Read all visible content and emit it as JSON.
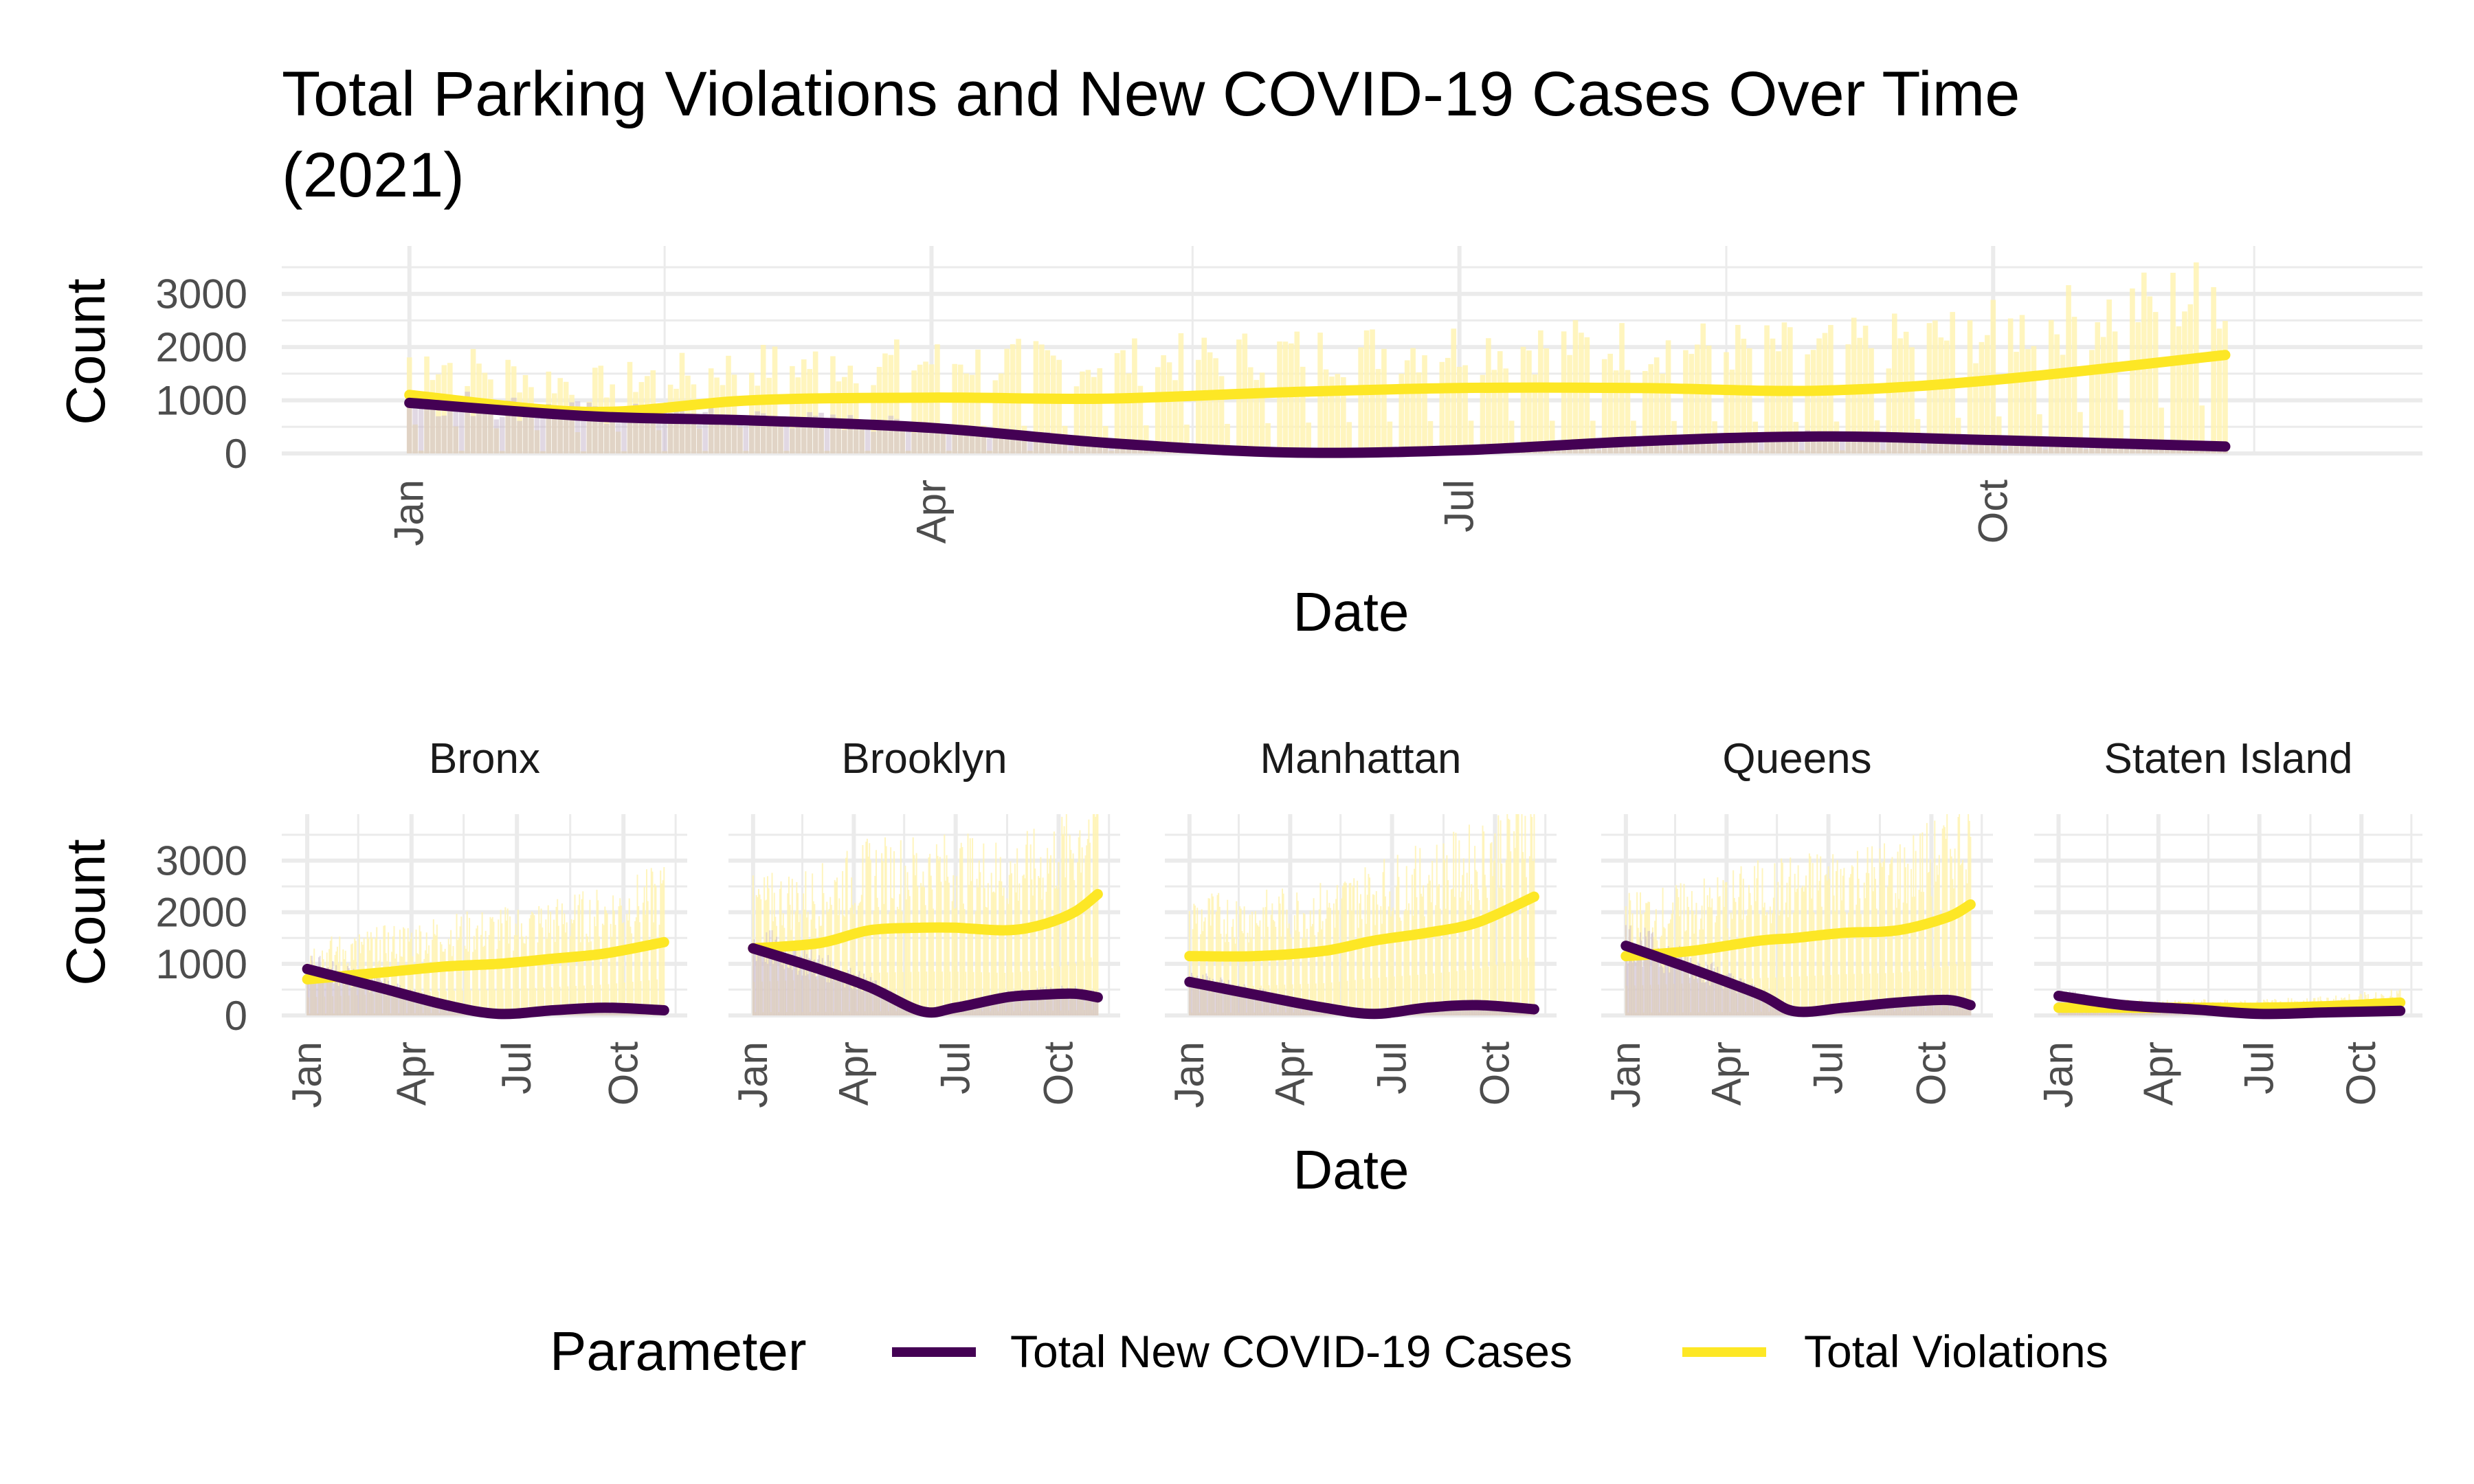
{
  "chart_data": {
    "type": "line",
    "title_line1": "Total Parking Violations and New COVID-19 Cases Over Time",
    "title_line2": "(2021)",
    "colors": {
      "cases": "#440154",
      "violations": "#fde725",
      "grid": "#ebebeb",
      "raw_violations": "#fff3b3",
      "raw_cases": "#c9b8cc"
    },
    "legend": {
      "title": "Parameter",
      "position": "bottom",
      "entries": [
        "Total New COVID-19 Cases",
        "Total Violations"
      ]
    },
    "overall": {
      "xlabel": "Date",
      "ylabel": "Count",
      "x_ticks": [
        "Jan",
        "Apr",
        "Jul",
        "Oct"
      ],
      "y_ticks": [
        0,
        1000,
        2000,
        3000
      ],
      "ylim": [
        0,
        3900
      ],
      "x_range": [
        "2020-12-10",
        "2021-12-14"
      ],
      "series": [
        {
          "name": "Total New COVID-19 Cases",
          "x": [
            "2021-01-01",
            "2021-02-01",
            "2021-03-01",
            "2021-04-01",
            "2021-05-01",
            "2021-06-01",
            "2021-07-01",
            "2021-08-01",
            "2021-09-01",
            "2021-10-01",
            "2021-11-10"
          ],
          "values": [
            950,
            700,
            620,
            480,
            200,
            20,
            60,
            230,
            320,
            250,
            130
          ]
        },
        {
          "name": "Total Violations",
          "x": [
            "2021-01-01",
            "2021-02-01",
            "2021-03-01",
            "2021-04-01",
            "2021-05-01",
            "2021-06-01",
            "2021-07-01",
            "2021-08-01",
            "2021-09-01",
            "2021-10-01",
            "2021-11-10"
          ],
          "values": [
            1100,
            780,
            1000,
            1050,
            1030,
            1150,
            1230,
            1230,
            1180,
            1380,
            1850
          ]
        }
      ]
    },
    "facets": {
      "xlabel": "Date",
      "ylabel": "Count",
      "x_ticks": [
        "Jan",
        "Apr",
        "Jul",
        "Oct"
      ],
      "y_ticks": [
        0,
        1000,
        2000,
        3000
      ],
      "ylim": [
        0,
        3900
      ],
      "x_range": [
        "2020-12-10",
        "2021-11-25"
      ],
      "panels": [
        {
          "name": "Bronx",
          "x": [
            "2021-01-01",
            "2021-03-01",
            "2021-05-01",
            "2021-06-15",
            "2021-08-01",
            "2021-09-15",
            "2021-11-05"
          ],
          "cases": [
            900,
            560,
            200,
            30,
            100,
            150,
            100
          ],
          "violations": [
            700,
            820,
            950,
            1000,
            1100,
            1200,
            1420
          ]
        },
        {
          "name": "Brooklyn",
          "x": [
            "2021-01-01",
            "2021-03-01",
            "2021-04-15",
            "2021-06-01",
            "2021-07-01",
            "2021-08-15",
            "2021-09-15",
            "2021-10-15",
            "2021-11-05"
          ],
          "cases": [
            1300,
            900,
            550,
            80,
            150,
            350,
            400,
            420,
            350
          ],
          "violations": [
            1300,
            1400,
            1650,
            1700,
            1700,
            1650,
            1750,
            2000,
            2350
          ]
        },
        {
          "name": "Manhattan",
          "x": [
            "2021-01-01",
            "2021-03-01",
            "2021-05-01",
            "2021-06-15",
            "2021-08-01",
            "2021-09-15",
            "2021-11-05"
          ],
          "cases": [
            650,
            400,
            150,
            30,
            150,
            200,
            120
          ],
          "violations": [
            1150,
            1150,
            1250,
            1450,
            1600,
            1800,
            2300
          ]
        },
        {
          "name": "Queens",
          "x": [
            "2021-01-01",
            "2021-03-01",
            "2021-05-01",
            "2021-06-01",
            "2021-07-15",
            "2021-09-01",
            "2021-10-15",
            "2021-11-05"
          ],
          "cases": [
            1350,
            900,
            400,
            80,
            150,
            250,
            300,
            200
          ],
          "violations": [
            1150,
            1250,
            1450,
            1500,
            1600,
            1650,
            1900,
            2150
          ]
        },
        {
          "name": "Staten Island",
          "x": [
            "2021-01-01",
            "2021-03-01",
            "2021-05-01",
            "2021-07-01",
            "2021-09-01",
            "2021-11-05"
          ],
          "cases": [
            380,
            200,
            120,
            30,
            60,
            90
          ],
          "violations": [
            150,
            150,
            150,
            150,
            180,
            250
          ]
        }
      ]
    }
  }
}
